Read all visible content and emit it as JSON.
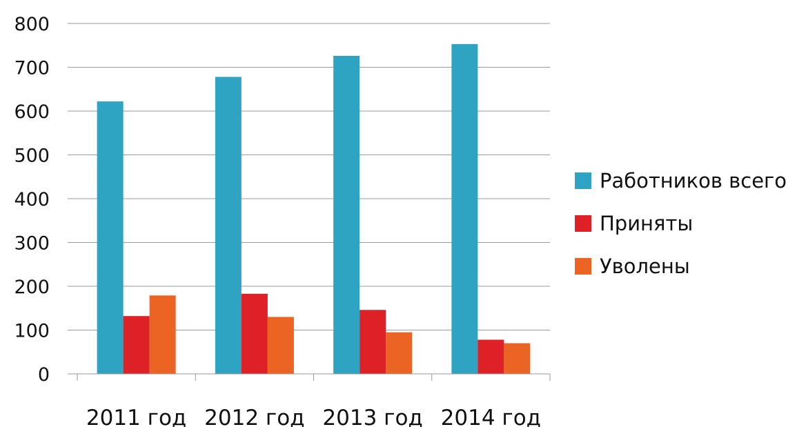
{
  "chart_data": {
    "type": "bar",
    "title": "",
    "xlabel": "",
    "ylabel": "",
    "categories": [
      "2011 год",
      "2012 год",
      "2013 год",
      "2014 год"
    ],
    "series": [
      {
        "name": "Работников всего",
        "values": [
          622,
          678,
          726,
          753
        ],
        "color": "#2ea3c2"
      },
      {
        "name": "Приняты",
        "values": [
          132,
          183,
          146,
          78
        ],
        "color": "#dd2127"
      },
      {
        "name": "Уволены",
        "values": [
          179,
          130,
          95,
          70
        ],
        "color": "#ec6424"
      }
    ],
    "ylim": [
      0,
      800
    ],
    "yticks": [
      0,
      100,
      200,
      300,
      400,
      500,
      600,
      700,
      800
    ],
    "grid": true,
    "legend_position": "right"
  }
}
